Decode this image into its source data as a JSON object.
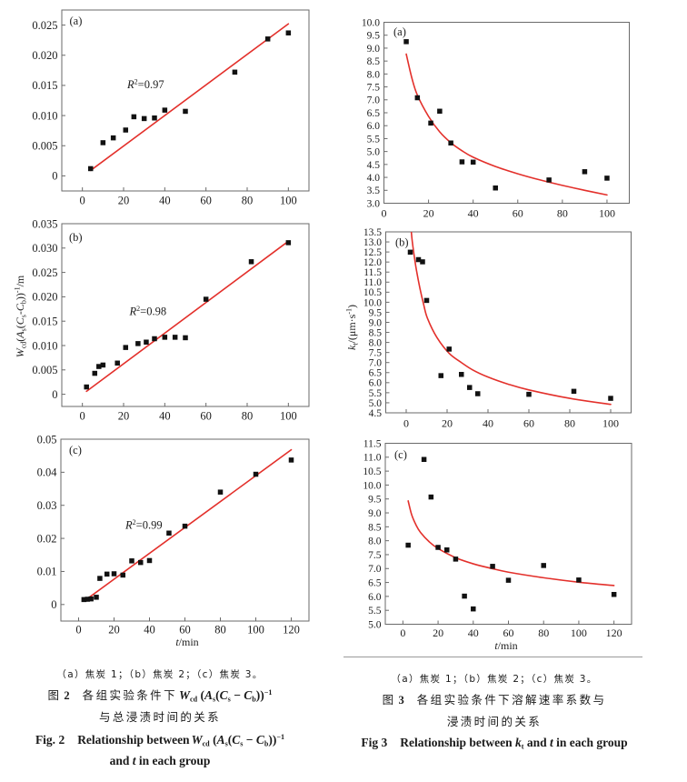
{
  "captions": {
    "fig2": {
      "panels_note": "（a）焦炭 1；（b）焦炭 2；（c）焦炭 3。",
      "zh_label": "图",
      "number": "2",
      "zh_title_line1": "各组实验条件下",
      "zh_title_line2": "与总浸渍时间的关系",
      "en_label": "Fig.",
      "en_title_line1": "Relationship between",
      "en_title_line2_parts": [
        "and",
        "t",
        "in each group"
      ],
      "expr_parts": [
        "W",
        "cd",
        "(",
        "A",
        "s",
        "(",
        "C",
        "s",
        "−",
        "C",
        "b",
        "))",
        "−1"
      ]
    },
    "fig3": {
      "panels_note": "（a）焦炭 1；（b）焦炭 2；（c）焦炭 3。",
      "zh_label": "图",
      "number": "3",
      "zh_title_line1": "各组实验条件下溶解速率系数与",
      "zh_title_line2": "浸渍时间的关系",
      "en_label": "Fig",
      "en_title_parts": [
        "Relationship between",
        "k",
        "t",
        "and",
        "t",
        "in each group"
      ]
    }
  },
  "chart_data": [
    {
      "id": "fig2a",
      "type": "scatter",
      "figure": "Fig. 2",
      "panel_label": "(a)",
      "title": "",
      "xlabel": "",
      "ylabel": "",
      "xlim": [
        -10,
        110
      ],
      "ylim": [
        -0.0025,
        0.0275
      ],
      "xticks": [
        0,
        20,
        40,
        60,
        80,
        100
      ],
      "xtick_labels": [
        "0",
        "20",
        "40",
        "60",
        "80",
        "100"
      ],
      "yticks": [
        0,
        0.005,
        0.01,
        0.015,
        0.02,
        0.025
      ],
      "ytick_labels": [
        "0",
        "0.005",
        "0.010",
        "0.015",
        "0.020",
        "0.025"
      ],
      "grid": false,
      "legend": "none",
      "series": [
        {
          "name": "measured",
          "kind": "scatter",
          "marker": "square",
          "color": "#111111",
          "x": [
            4,
            10,
            15,
            21,
            25,
            30,
            35,
            40,
            50,
            74,
            90,
            100
          ],
          "y": [
            0.0012,
            0.0055,
            0.0063,
            0.0076,
            0.0098,
            0.0095,
            0.0096,
            0.0109,
            0.0107,
            0.0172,
            0.0227,
            0.0237
          ]
        },
        {
          "name": "linear fit",
          "kind": "line",
          "color": "#e3302b",
          "x": [
            4,
            100
          ],
          "y": [
            0.0009,
            0.0252
          ]
        }
      ],
      "annotation": {
        "symbol": "R",
        "superscript": "2",
        "text": "=0.97",
        "r_squared": 0.97
      }
    },
    {
      "id": "fig2b",
      "type": "scatter",
      "figure": "Fig. 2",
      "panel_label": "(b)",
      "title": "",
      "xlabel": "",
      "ylabel": "W_cd(A_s(C_s-C_b))^-1/m",
      "ylabel_parts": [
        "W",
        "cd",
        "(",
        "A",
        "s",
        "(",
        "C",
        "s",
        "-",
        "C",
        "b",
        "))",
        "-1",
        "/m"
      ],
      "xlim": [
        -10,
        110
      ],
      "ylim": [
        -0.0025,
        0.035
      ],
      "xticks": [
        0,
        20,
        40,
        60,
        80,
        100
      ],
      "xtick_labels": [
        "0",
        "20",
        "40",
        "60",
        "80",
        "100"
      ],
      "yticks": [
        0,
        0.005,
        0.01,
        0.015,
        0.02,
        0.025,
        0.03,
        0.035
      ],
      "ytick_labels": [
        "0",
        "0.005",
        "0.010",
        "0.015",
        "0.020",
        "0.025",
        "0.030",
        "0.035"
      ],
      "grid": false,
      "legend": "none",
      "series": [
        {
          "name": "measured",
          "kind": "scatter",
          "marker": "square",
          "color": "#111111",
          "x": [
            2,
            6,
            8,
            10,
            17,
            21,
            27,
            31,
            35,
            40,
            45,
            50,
            60,
            82,
            100
          ],
          "y": [
            0.0015,
            0.0043,
            0.0057,
            0.006,
            0.0064,
            0.0096,
            0.0104,
            0.0107,
            0.0114,
            0.0117,
            0.0117,
            0.0116,
            0.0195,
            0.0272,
            0.0311
          ]
        },
        {
          "name": "linear fit",
          "kind": "line",
          "color": "#e3302b",
          "x": [
            2,
            100
          ],
          "y": [
            0.0006,
            0.0314
          ]
        }
      ],
      "annotation": {
        "symbol": "R",
        "superscript": "2",
        "text": "=0.98",
        "r_squared": 0.98
      }
    },
    {
      "id": "fig2c",
      "type": "scatter",
      "figure": "Fig. 2",
      "panel_label": "(c)",
      "title": "",
      "xlabel": "t/min",
      "xlabel_parts": [
        "t",
        "/min"
      ],
      "ylabel": "",
      "xlim": [
        -10,
        130
      ],
      "ylim": [
        -0.005,
        0.05
      ],
      "xticks": [
        0,
        20,
        40,
        60,
        80,
        100,
        120
      ],
      "xtick_labels": [
        "0",
        "20",
        "40",
        "60",
        "80",
        "100",
        "120"
      ],
      "yticks": [
        0,
        0.01,
        0.02,
        0.03,
        0.04,
        0.05
      ],
      "ytick_labels": [
        "0",
        "0.01",
        "0.02",
        "0.03",
        "0.04",
        "0.05"
      ],
      "grid": false,
      "legend": "none",
      "series": [
        {
          "name": "measured",
          "kind": "scatter",
          "marker": "square",
          "color": "#111111",
          "x": [
            3,
            5,
            7,
            10,
            12,
            16,
            20,
            25,
            30,
            35,
            40,
            51,
            60,
            80,
            100,
            120
          ],
          "y": [
            0.0015,
            0.0016,
            0.0017,
            0.0022,
            0.0079,
            0.0092,
            0.0093,
            0.0089,
            0.0132,
            0.0127,
            0.0133,
            0.0216,
            0.0237,
            0.034,
            0.0394,
            0.0437
          ]
        },
        {
          "name": "linear fit",
          "kind": "line",
          "color": "#e3302b",
          "x": [
            3,
            120
          ],
          "y": [
            0.001,
            0.0468
          ]
        }
      ],
      "annotation": {
        "symbol": "R",
        "superscript": "2",
        "text": "=0.99",
        "r_squared": 0.99
      }
    },
    {
      "id": "fig3a",
      "type": "scatter",
      "figure": "Fig 3",
      "panel_label": "(a)",
      "title": "",
      "xlabel": "",
      "ylabel": "",
      "xlim": [
        0,
        110
      ],
      "ylim": [
        3,
        10
      ],
      "xticks": [
        0,
        20,
        40,
        60,
        80,
        100
      ],
      "xtick_labels": [
        "0",
        "20",
        "40",
        "60",
        "80",
        "100"
      ],
      "yticks": [
        3,
        3.5,
        4,
        4.5,
        5,
        5.5,
        6,
        6.5,
        7,
        7.5,
        8,
        8.5,
        9,
        9.5,
        10
      ],
      "ytick_labels": [
        "3.0",
        "3.5",
        "4.0",
        "4.5",
        "5.0",
        "5.5",
        "6.0",
        "6.5",
        "7.0",
        "7.5",
        "8.0",
        "8.5",
        "9.0",
        "9.5",
        "10.0"
      ],
      "grid": false,
      "legend": "none",
      "series": [
        {
          "name": "measured",
          "kind": "scatter",
          "marker": "square",
          "color": "#111111",
          "x": [
            10,
            15,
            21,
            25,
            30,
            35,
            40,
            50,
            74,
            90,
            100
          ],
          "y": [
            9.25,
            7.08,
            6.1,
            6.56,
            5.33,
            4.6,
            4.59,
            3.59,
            3.9,
            4.22,
            3.97
          ]
        },
        {
          "name": "fitted curve",
          "kind": "curve",
          "color": "#e3302b",
          "x": [
            10,
            12.5,
            15,
            20,
            25,
            30,
            35,
            40,
            50,
            60,
            70,
            80,
            90,
            100
          ],
          "y": [
            8.77,
            7.85,
            7.18,
            6.36,
            5.76,
            5.34,
            5.03,
            4.78,
            4.42,
            4.14,
            3.9,
            3.69,
            3.5,
            3.32
          ]
        }
      ]
    },
    {
      "id": "fig3b",
      "type": "scatter",
      "figure": "Fig 3",
      "panel_label": "(b)",
      "title": "",
      "xlabel": "",
      "ylabel": "k_t/(μm·s^-1)",
      "ylabel_parts": [
        "k",
        "t",
        "/(μm·s",
        "-1",
        ")"
      ],
      "xlim": [
        -10,
        110
      ],
      "ylim": [
        4.5,
        13.5
      ],
      "xticks": [
        0,
        20,
        40,
        60,
        80,
        100
      ],
      "xtick_labels": [
        "0",
        "20",
        "40",
        "60",
        "80",
        "100"
      ],
      "yticks": [
        4.5,
        5,
        5.5,
        6,
        6.5,
        7,
        7.5,
        8,
        8.5,
        9,
        9.5,
        10,
        10.5,
        11,
        11.5,
        12,
        12.5,
        13,
        13.5
      ],
      "ytick_labels": [
        "4.5",
        "5.0",
        "5.5",
        "6.0",
        "6.5",
        "7.0",
        "7.5",
        "8.0",
        "8.5",
        "9.0",
        "9.5",
        "10.0",
        "10.5",
        "11.0",
        "11.5",
        "12.0",
        "12.5",
        "13.0",
        "13.5"
      ],
      "grid": false,
      "legend": "none",
      "series": [
        {
          "name": "measured",
          "kind": "scatter",
          "marker": "square",
          "color": "#111111",
          "x": [
            2,
            6,
            8,
            10,
            17,
            21,
            27,
            31,
            35,
            60,
            82,
            100
          ],
          "y": [
            12.49,
            12.12,
            12.01,
            10.09,
            6.35,
            7.67,
            6.41,
            5.76,
            5.45,
            5.42,
            5.57,
            5.22
          ]
        },
        {
          "name": "fitted curve",
          "kind": "curve",
          "color": "#e3302b",
          "x": [
            2.5,
            3,
            4,
            5,
            6.7,
            8.5,
            10.4,
            15,
            21,
            27,
            32.6,
            40,
            50,
            60,
            80,
            100
          ],
          "y": [
            13.5,
            13.0,
            12.25,
            11.6,
            10.7,
            9.9,
            9.2,
            8.25,
            7.46,
            7.0,
            6.63,
            6.28,
            5.92,
            5.64,
            5.22,
            4.92
          ]
        }
      ]
    },
    {
      "id": "fig3c",
      "type": "scatter",
      "figure": "Fig 3",
      "panel_label": "(c)",
      "title": "",
      "xlabel": "t/min",
      "xlabel_parts": [
        "t",
        "/min"
      ],
      "ylabel": "",
      "xlim": [
        -10,
        130
      ],
      "ylim": [
        5,
        11.5
      ],
      "xticks": [
        0,
        20,
        40,
        60,
        80,
        100,
        120
      ],
      "xtick_labels": [
        "0",
        "20",
        "40",
        "60",
        "80",
        "100",
        "120"
      ],
      "yticks": [
        5,
        5.5,
        6,
        6.5,
        7,
        7.5,
        8,
        8.5,
        9,
        9.5,
        10,
        10.5,
        11,
        11.5
      ],
      "ytick_labels": [
        "5.0",
        "5.5",
        "6.0",
        "6.5",
        "7.0",
        "7.5",
        "8.0",
        "8.5",
        "9.0",
        "9.5",
        "10.0",
        "10.5",
        "11.0",
        "11.5"
      ],
      "grid": false,
      "legend": "none",
      "series": [
        {
          "name": "measured",
          "kind": "scatter",
          "marker": "square",
          "color": "#111111",
          "x": [
            3,
            12,
            16,
            20,
            25,
            30,
            35,
            40,
            51,
            60,
            80,
            100,
            120
          ],
          "y": [
            7.84,
            10.92,
            9.57,
            7.76,
            7.67,
            7.34,
            6.01,
            5.55,
            7.08,
            6.58,
            7.11,
            6.59,
            6.07
          ]
        },
        {
          "name": "fitted curve",
          "kind": "curve",
          "color": "#e3302b",
          "x": [
            3,
            5,
            7.5,
            10,
            15,
            20,
            30,
            40,
            50,
            60,
            80,
            100,
            120
          ],
          "y": [
            9.43,
            8.93,
            8.56,
            8.3,
            7.96,
            7.72,
            7.39,
            7.17,
            7.01,
            6.87,
            6.67,
            6.51,
            6.39
          ]
        }
      ]
    }
  ]
}
